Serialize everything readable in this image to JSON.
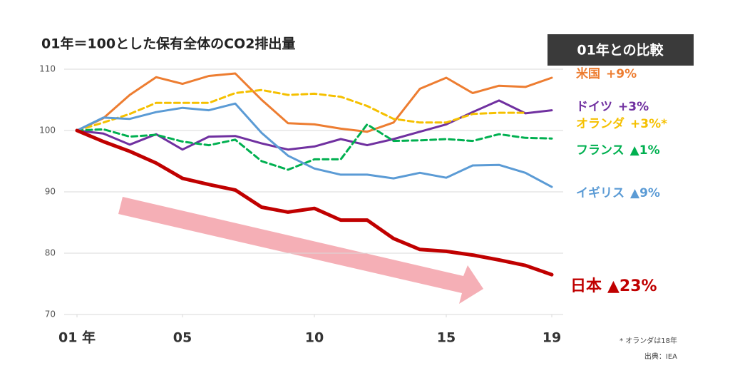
{
  "chart_data": {
    "type": "line",
    "title": "01年＝100とした保有全体のCO2排出量",
    "badge": "01年との比較",
    "x": [
      1,
      2,
      3,
      4,
      5,
      6,
      7,
      8,
      9,
      10,
      11,
      12,
      13,
      14,
      15,
      16,
      17,
      18,
      19
    ],
    "xlim": [
      1,
      19
    ],
    "xticks": [
      {
        "value": 1,
        "label": "01 年"
      },
      {
        "value": 5,
        "label": "05"
      },
      10,
      15,
      19
    ],
    "ylim": [
      70,
      110
    ],
    "yticks": [
      70,
      80,
      90,
      100,
      110
    ],
    "grid": true,
    "series": [
      {
        "name": "米国",
        "change": "+9%",
        "color": "#ed7d31",
        "dashed": false,
        "values": [
          100,
          102,
          105.8,
          108.7,
          107.6,
          108.9,
          109.3,
          105,
          101.2,
          101,
          100.3,
          99.8,
          101.3,
          106.8,
          108.6,
          106.1,
          107.3,
          107.1,
          108.6
        ]
      },
      {
        "name": "ドイツ",
        "change": "+3%",
        "color": "#7030a0",
        "dashed": false,
        "values": [
          100,
          99.5,
          97.7,
          99.4,
          96.9,
          99,
          99.1,
          97.9,
          96.9,
          97.4,
          98.6,
          97.6,
          98.6,
          99.8,
          101,
          103,
          104.9,
          102.8,
          103.3
        ]
      },
      {
        "name": "オランダ",
        "change": "+3%*",
        "color": "#f5c000",
        "dashed": true,
        "values": [
          100,
          101.3,
          102.7,
          104.5,
          104.5,
          104.5,
          106.1,
          106.6,
          105.8,
          106,
          105.5,
          104,
          101.9,
          101.3,
          101.3,
          102.7,
          102.9,
          102.9,
          null
        ]
      },
      {
        "name": "フランス",
        "change": "▲1%",
        "color": "#00b050",
        "dashed": true,
        "values": [
          100,
          100.2,
          99,
          99.3,
          98.2,
          97.6,
          98.5,
          95,
          93.6,
          95.3,
          95.3,
          101,
          98.3,
          98.4,
          98.6,
          98.3,
          99.4,
          98.8,
          98.7
        ]
      },
      {
        "name": "イギリス",
        "change": "▲9%",
        "color": "#5b9bd5",
        "dashed": false,
        "values": [
          100,
          102.1,
          101.9,
          103,
          103.7,
          103.3,
          104.4,
          99.6,
          95.9,
          93.8,
          92.8,
          92.8,
          92.2,
          93.1,
          92.3,
          94.3,
          94.4,
          93.1,
          90.8
        ]
      },
      {
        "name": "日本",
        "change": "▲23%",
        "color": "#c00000",
        "dashed": false,
        "values": [
          100,
          98.2,
          96.6,
          94.7,
          92.2,
          91.2,
          90.3,
          87.5,
          86.7,
          87.3,
          85.4,
          85.4,
          82.4,
          80.6,
          80.3,
          79.7,
          78.9,
          78,
          76.5
        ]
      }
    ],
    "footnotes": [
      "* オランダは18年",
      "出典：IEA"
    ]
  }
}
